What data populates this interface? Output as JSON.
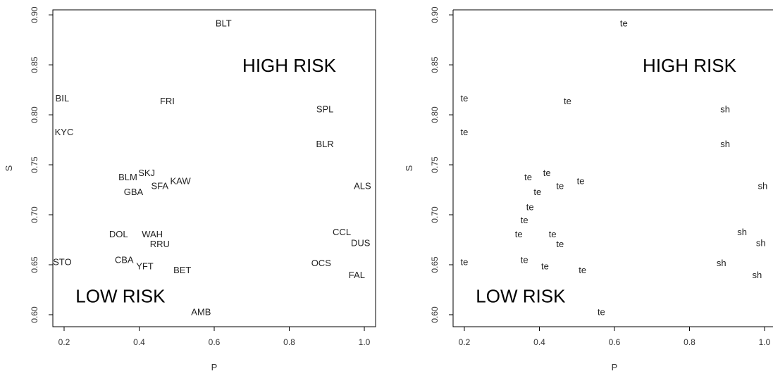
{
  "chart_data": [
    {
      "type": "scatter",
      "xlabel": "P",
      "ylabel": "S",
      "xlim": [
        0.17,
        1.03
      ],
      "ylim": [
        0.588,
        0.905
      ],
      "x_ticks": [
        "0.2",
        "0.4",
        "0.6",
        "0.8",
        "1.0"
      ],
      "x_tick_values": [
        0.2,
        0.4,
        0.6,
        0.8,
        1.0
      ],
      "y_ticks": [
        "0.60",
        "0.65",
        "0.70",
        "0.75",
        "0.80",
        "0.85",
        "0.90"
      ],
      "y_tick_values": [
        0.6,
        0.65,
        0.7,
        0.75,
        0.8,
        0.85,
        0.9
      ],
      "annotations": [
        {
          "text": "HIGH RISK",
          "x": 0.8,
          "y": 0.848
        },
        {
          "text": "LOW RISK",
          "x": 0.35,
          "y": 0.617
        }
      ],
      "points": [
        {
          "label": "BLT",
          "x": 0.625,
          "y": 0.891
        },
        {
          "label": "BIL",
          "x": 0.195,
          "y": 0.816
        },
        {
          "label": "FRI",
          "x": 0.475,
          "y": 0.813
        },
        {
          "label": "SPL",
          "x": 0.895,
          "y": 0.805
        },
        {
          "label": "KYC",
          "x": 0.2,
          "y": 0.782
        },
        {
          "label": "BLR",
          "x": 0.895,
          "y": 0.77
        },
        {
          "label": "BLM",
          "x": 0.37,
          "y": 0.737
        },
        {
          "label": "SKJ",
          "x": 0.42,
          "y": 0.741
        },
        {
          "label": "KAW",
          "x": 0.51,
          "y": 0.733
        },
        {
          "label": "ALS",
          "x": 0.995,
          "y": 0.728
        },
        {
          "label": "SFA",
          "x": 0.455,
          "y": 0.728
        },
        {
          "label": "GBA",
          "x": 0.385,
          "y": 0.722
        },
        {
          "label": "CCL",
          "x": 0.94,
          "y": 0.682
        },
        {
          "label": "DOL",
          "x": 0.345,
          "y": 0.68
        },
        {
          "label": "WAH",
          "x": 0.435,
          "y": 0.68
        },
        {
          "label": "DUS",
          "x": 0.99,
          "y": 0.671
        },
        {
          "label": "RRU",
          "x": 0.455,
          "y": 0.67
        },
        {
          "label": "CBA",
          "x": 0.36,
          "y": 0.654
        },
        {
          "label": "STO",
          "x": 0.195,
          "y": 0.652
        },
        {
          "label": "OCS",
          "x": 0.885,
          "y": 0.651
        },
        {
          "label": "YFT",
          "x": 0.415,
          "y": 0.648
        },
        {
          "label": "BET",
          "x": 0.515,
          "y": 0.644
        },
        {
          "label": "FAL",
          "x": 0.98,
          "y": 0.639
        },
        {
          "label": "AMB",
          "x": 0.565,
          "y": 0.602
        }
      ]
    },
    {
      "type": "scatter",
      "xlabel": "P",
      "ylabel": "S",
      "xlim": [
        0.17,
        1.03
      ],
      "ylim": [
        0.588,
        0.905
      ],
      "x_ticks": [
        "0.2",
        "0.4",
        "0.6",
        "0.8",
        "1.0"
      ],
      "x_tick_values": [
        0.2,
        0.4,
        0.6,
        0.8,
        1.0
      ],
      "y_ticks": [
        "0.60",
        "0.65",
        "0.70",
        "0.75",
        "0.80",
        "0.85",
        "0.90"
      ],
      "y_tick_values": [
        0.6,
        0.65,
        0.7,
        0.75,
        0.8,
        0.85,
        0.9
      ],
      "annotations": [
        {
          "text": "HIGH RISK",
          "x": 0.8,
          "y": 0.848
        },
        {
          "text": "LOW RISK",
          "x": 0.35,
          "y": 0.617
        }
      ],
      "points": [
        {
          "label": "te",
          "x": 0.625,
          "y": 0.891
        },
        {
          "label": "te",
          "x": 0.2,
          "y": 0.816
        },
        {
          "label": "te",
          "x": 0.475,
          "y": 0.813
        },
        {
          "label": "sh",
          "x": 0.895,
          "y": 0.805
        },
        {
          "label": "te",
          "x": 0.2,
          "y": 0.782
        },
        {
          "label": "sh",
          "x": 0.895,
          "y": 0.77
        },
        {
          "label": "te",
          "x": 0.37,
          "y": 0.737
        },
        {
          "label": "te",
          "x": 0.42,
          "y": 0.741
        },
        {
          "label": "te",
          "x": 0.51,
          "y": 0.733
        },
        {
          "label": "sh",
          "x": 0.995,
          "y": 0.728
        },
        {
          "label": "te",
          "x": 0.455,
          "y": 0.728
        },
        {
          "label": "te",
          "x": 0.395,
          "y": 0.722
        },
        {
          "label": "te",
          "x": 0.375,
          "y": 0.707
        },
        {
          "label": "te",
          "x": 0.36,
          "y": 0.694
        },
        {
          "label": "sh",
          "x": 0.94,
          "y": 0.682
        },
        {
          "label": "te",
          "x": 0.345,
          "y": 0.68
        },
        {
          "label": "te",
          "x": 0.435,
          "y": 0.68
        },
        {
          "label": "sh",
          "x": 0.99,
          "y": 0.671
        },
        {
          "label": "te",
          "x": 0.455,
          "y": 0.67
        },
        {
          "label": "te",
          "x": 0.36,
          "y": 0.654
        },
        {
          "label": "te",
          "x": 0.2,
          "y": 0.652
        },
        {
          "label": "sh",
          "x": 0.885,
          "y": 0.651
        },
        {
          "label": "te",
          "x": 0.415,
          "y": 0.648
        },
        {
          "label": "te",
          "x": 0.515,
          "y": 0.644
        },
        {
          "label": "sh",
          "x": 0.98,
          "y": 0.639
        },
        {
          "label": "te",
          "x": 0.565,
          "y": 0.602
        }
      ]
    }
  ]
}
